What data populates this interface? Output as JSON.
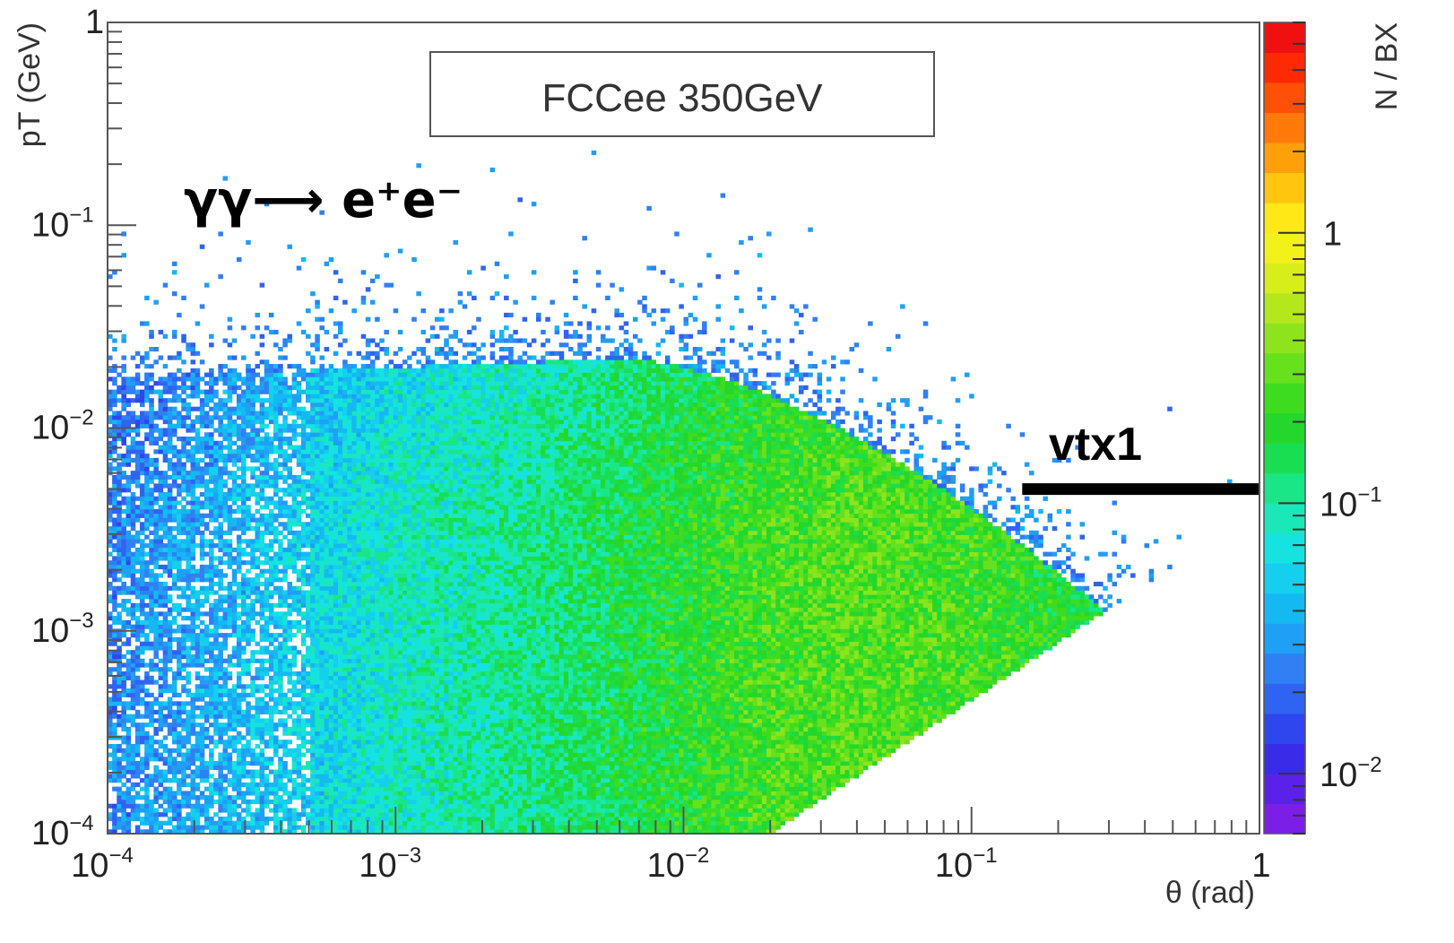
{
  "chart_data": {
    "type": "heatmap",
    "title": "",
    "legend_box": "FCCee 350GeV",
    "process_label": "γγ⟶ e⁺e⁻",
    "annotation": "vtx1",
    "xlabel": "θ (rad)",
    "ylabel": "pT (GeV)",
    "zlabel": "N / BX",
    "x_scale": "log",
    "y_scale": "log",
    "z_scale": "log",
    "xlim": [
      0.0001,
      1
    ],
    "ylim": [
      0.0001,
      1
    ],
    "zlim": [
      0.006,
      6
    ],
    "x_ticks": [
      {
        "base": "10",
        "exp": "−4"
      },
      {
        "base": "10",
        "exp": "−3"
      },
      {
        "base": "10",
        "exp": "−2"
      },
      {
        "base": "10",
        "exp": "−1"
      },
      {
        "base": "1",
        "exp": ""
      }
    ],
    "y_ticks": [
      {
        "base": "10",
        "exp": "−4"
      },
      {
        "base": "10",
        "exp": "−3"
      },
      {
        "base": "10",
        "exp": "−2"
      },
      {
        "base": "10",
        "exp": "−1"
      },
      {
        "base": "1",
        "exp": ""
      }
    ],
    "z_ticks": [
      {
        "base": "10",
        "exp": "−2"
      },
      {
        "base": "10",
        "exp": "−1"
      },
      {
        "base": "1",
        "exp": ""
      }
    ],
    "vtx1_line": {
      "theta_from": 0.15,
      "theta_to": 1.0,
      "pT": 0.005
    },
    "ridge": {
      "theta_from": 0.1,
      "theta_to": 0.55,
      "pT_at_from": 0.0085,
      "pT_at_to": 0.0026
    },
    "kinematic_edge": {
      "theta_from": 0.02,
      "theta_to": 1.0,
      "pT_at_from": 0.0001,
      "pT_at_to": 0.004
    },
    "colormap": [
      "#7b1fe6",
      "#5a22e8",
      "#3a2be9",
      "#2f45ee",
      "#2f63f1",
      "#2f80f3",
      "#1f9ff5",
      "#14b9f2",
      "#14cfee",
      "#14e3e0",
      "#1ae8b8",
      "#19e687",
      "#19de52",
      "#23d72d",
      "#3edc1f",
      "#66e11c",
      "#8ee41c",
      "#b4e81c",
      "#d8ee1a",
      "#f2f21a",
      "#ffe815",
      "#ffc50f",
      "#ffa00b",
      "#ff7a08",
      "#ff5005",
      "#ff2a03",
      "#f01010"
    ],
    "grid": false
  }
}
